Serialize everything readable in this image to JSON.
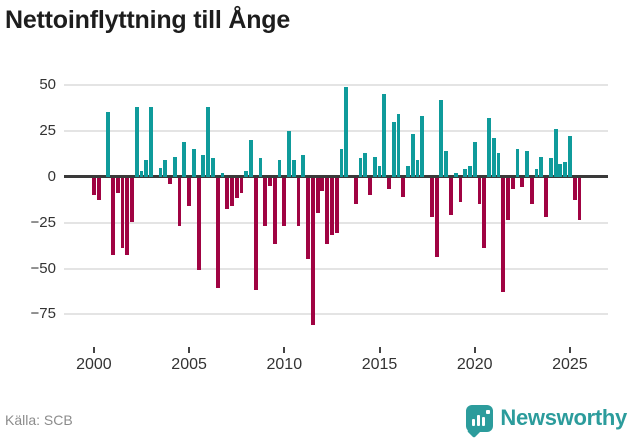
{
  "title": "Nettoinflyttning till Ånge",
  "source": "Källa: SCB",
  "brand": {
    "name": "Newsworthy",
    "color": "#2c9c9c"
  },
  "colors": {
    "positive_bar": "#0f9b9b",
    "negative_bar": "#a00342",
    "gridline": "#e4e4e4",
    "zero_line": "#3a3a3a",
    "axis_text": "#333333",
    "source_text": "#8c8c8c"
  },
  "chart_data": {
    "type": "bar",
    "title": "Nettoinflyttning till Ånge",
    "x_unit": "quarter",
    "start_year": 2000,
    "start_quarter": 1,
    "end_label": "2025 Q3",
    "grid": true,
    "ylim": [
      -85,
      55
    ],
    "y_ticks": [
      {
        "value": 50,
        "label": "50"
      },
      {
        "value": 25,
        "label": "25"
      },
      {
        "value": 0,
        "label": "0"
      },
      {
        "value": -25,
        "label": "−25"
      },
      {
        "value": -50,
        "label": "−50"
      },
      {
        "value": -75,
        "label": "−75"
      }
    ],
    "x_tick_years": [
      2000,
      2005,
      2010,
      2015,
      2020,
      2025
    ],
    "x_tick_labels": [
      "2000",
      "2005",
      "2010",
      "2015",
      "2020",
      "2025"
    ],
    "values": [
      -9,
      -12,
      0,
      35,
      -42,
      -8,
      -38,
      -42,
      -24,
      38,
      3,
      9,
      38,
      0,
      5,
      9,
      -3,
      11,
      -26,
      19,
      -15,
      15,
      -50,
      12,
      38,
      10,
      -60,
      2,
      -17,
      -15,
      -11,
      -8,
      3,
      20,
      -61,
      10,
      -26,
      -4,
      -36,
      9,
      -26,
      25,
      9,
      -26,
      12,
      -44,
      -80,
      -19,
      -7,
      -36,
      -31,
      -30,
      15,
      49,
      0,
      -14,
      10,
      13,
      -9,
      11,
      6,
      45,
      -6,
      30,
      34,
      -10,
      6,
      23,
      9,
      33,
      0,
      -21,
      -43,
      42,
      14,
      -20,
      2,
      -13,
      4,
      6,
      19,
      -14,
      -38,
      32,
      21,
      13,
      -62,
      -23,
      -6,
      15,
      -5,
      14,
      -14,
      4,
      11,
      -21,
      10,
      26,
      7,
      8,
      22,
      -12,
      -23
    ]
  }
}
